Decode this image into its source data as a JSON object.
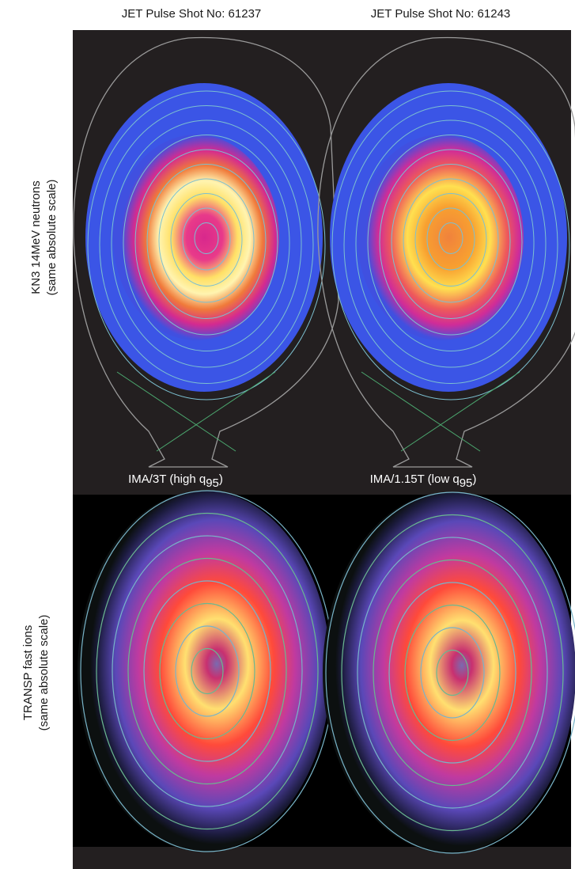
{
  "columns": [
    {
      "title": "JET Pulse Shot No: 61237",
      "caption": {
        "text": "IMA/3T (high q",
        "subscript": "95",
        "suffix": ")"
      }
    },
    {
      "title": "JET Pulse Shot No: 61243",
      "caption": {
        "text": "IMA/1.15T (low q",
        "subscript": "95",
        "suffix": ")"
      }
    }
  ],
  "rows": [
    {
      "label": "KN3 14MeV neutrons",
      "sublabel": "(same absolute scale)"
    },
    {
      "label": "TRANSP fast ions",
      "sublabel": "(same absolute scale)"
    }
  ]
}
